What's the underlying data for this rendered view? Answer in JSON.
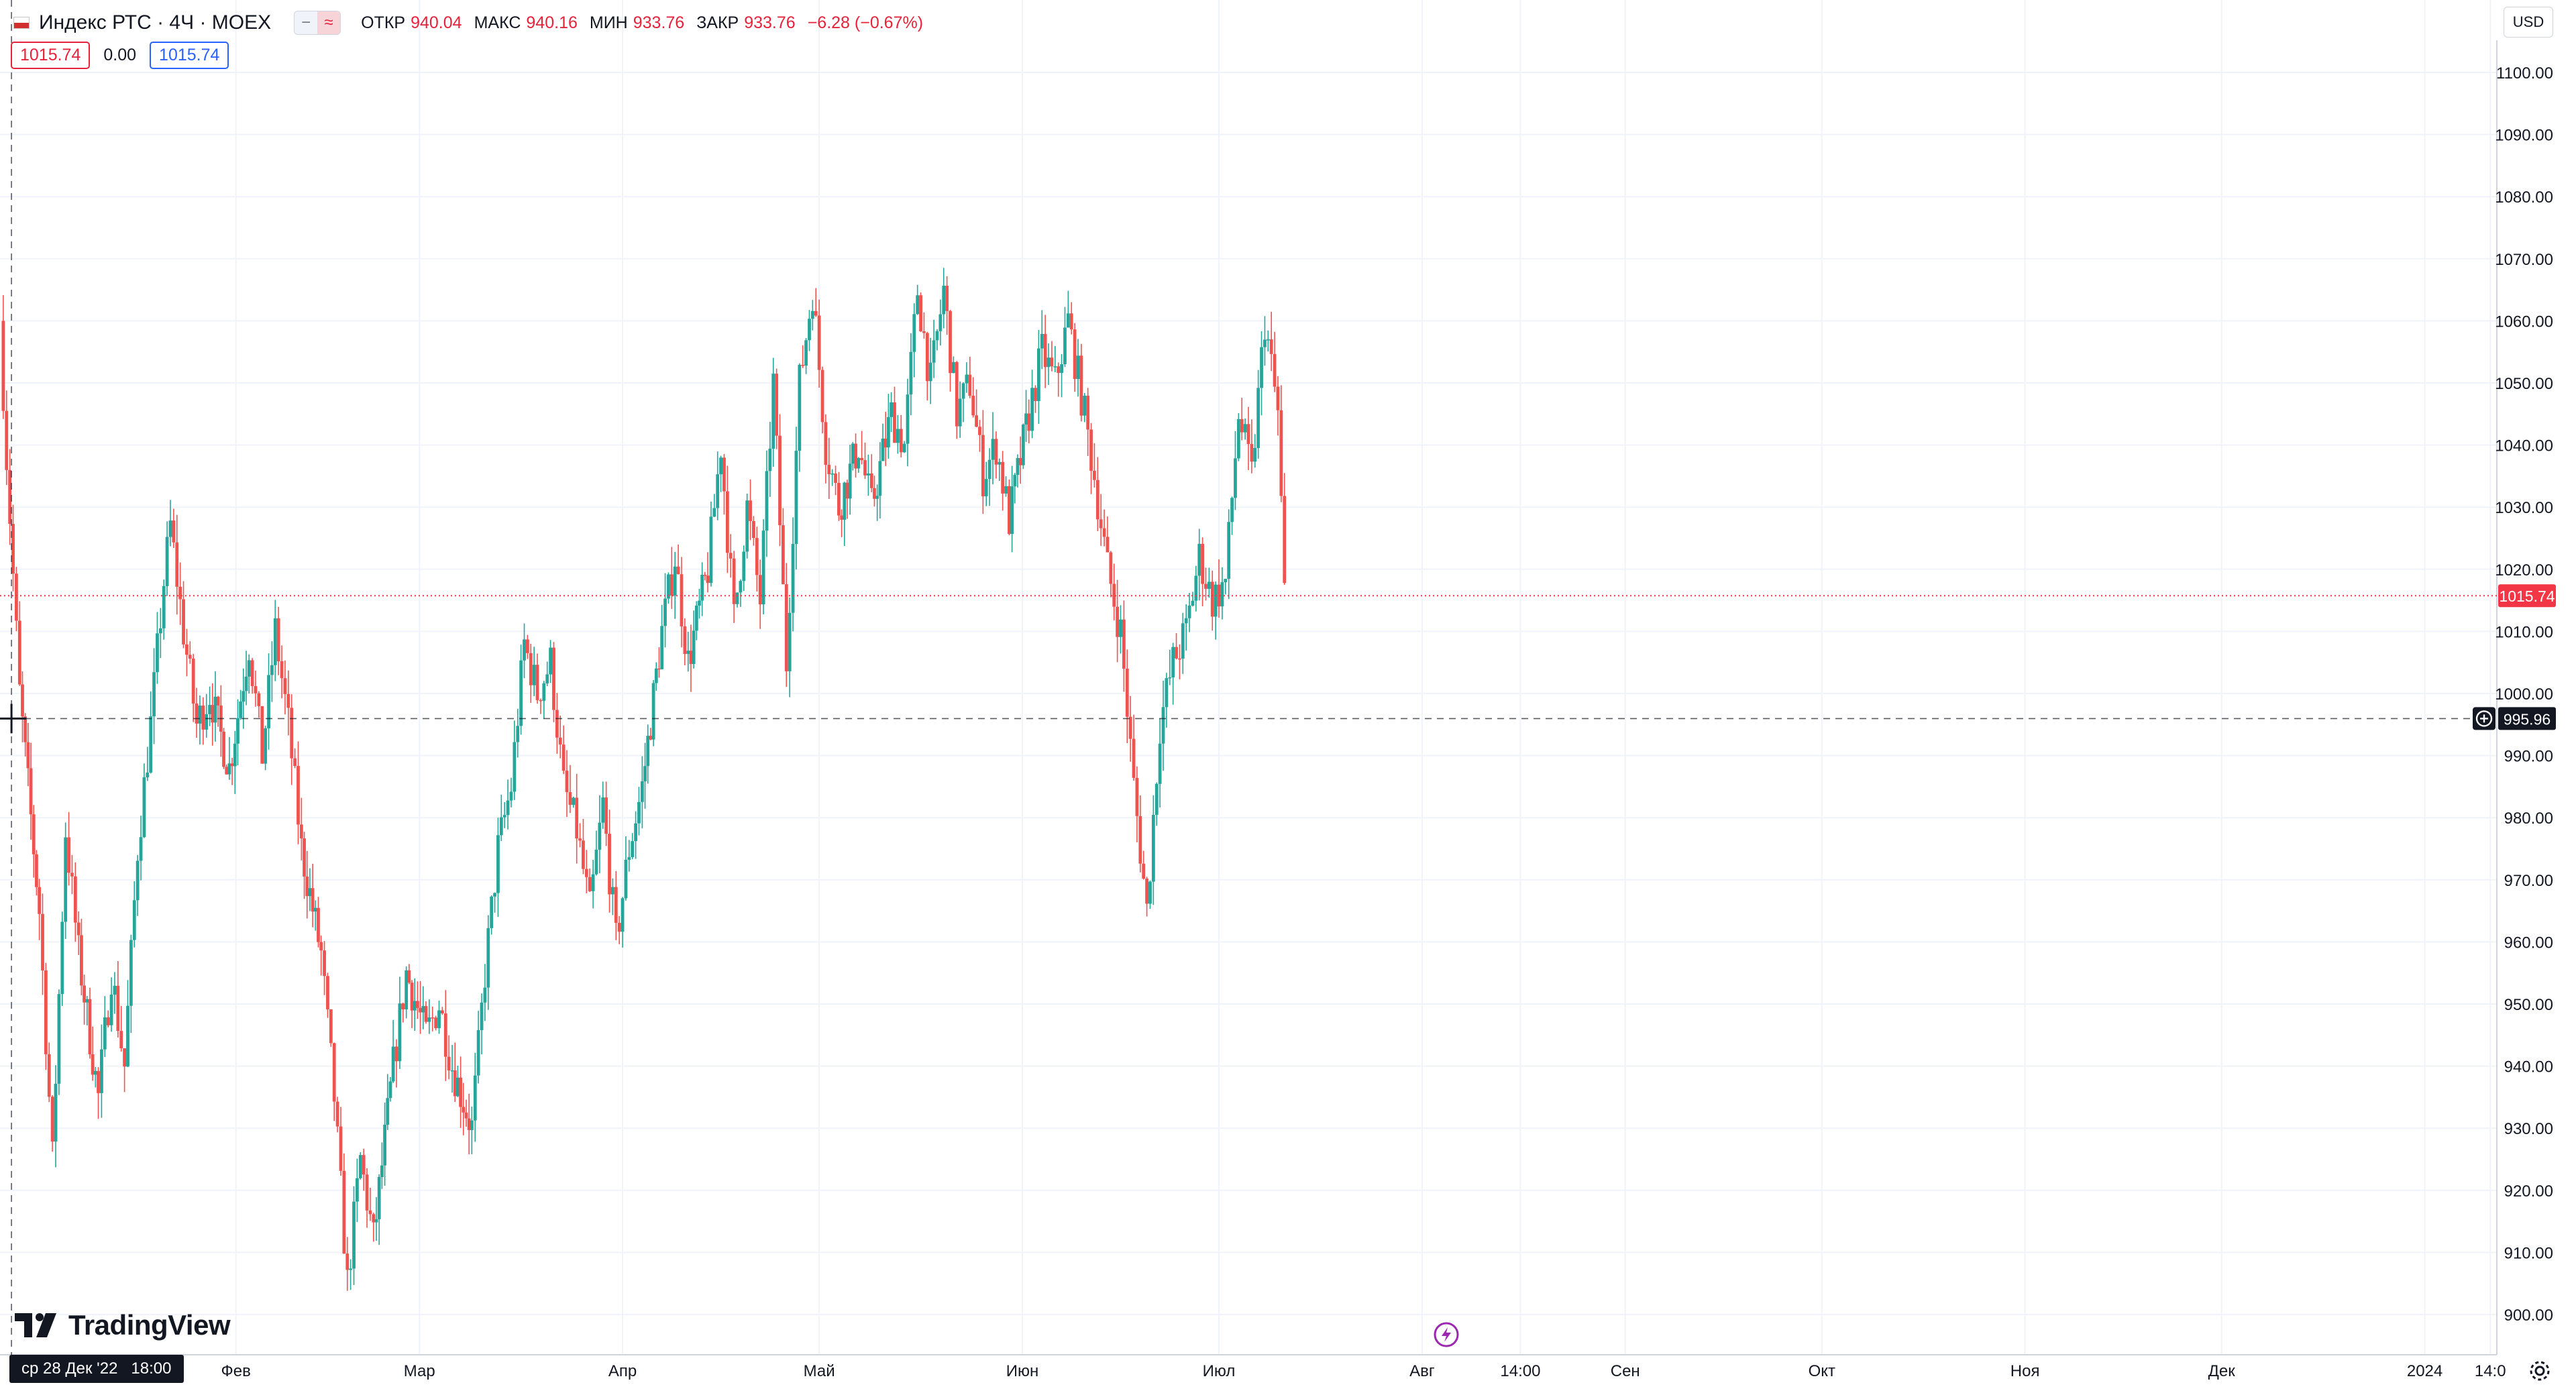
{
  "legend": {
    "symbol": "Индекс РТС · 4Ч · MOEX",
    "open_label": "ОТКР",
    "open": "940.04",
    "high_label": "МАКС",
    "high": "940.16",
    "low_label": "МИН",
    "low": "933.76",
    "close_label": "ЗАКР",
    "close": "933.76",
    "change": "−6.28 (−0.67%)"
  },
  "order_row": {
    "sell": "1015.74",
    "spread": "0.00",
    "buy": "1015.74"
  },
  "currency_button": "USD",
  "brand": "TradingView",
  "crosshair_date_label": "ср 28 Дек '22   18:00",
  "price_axis": {
    "ticks": [
      "1100.00",
      "1090.00",
      "1080.00",
      "1070.00",
      "1060.00",
      "1050.00",
      "1040.00",
      "1030.00",
      "1020.00",
      "1010.00",
      "1000.00",
      "990.00",
      "980.00",
      "970.00",
      "960.00",
      "950.00",
      "940.00",
      "930.00",
      "920.00",
      "910.00",
      "900.00"
    ],
    "last_price_label": "1015.74",
    "crosshair_price_label": "995.96"
  },
  "time_axis": {
    "ticks": [
      "Фев",
      "Мар",
      "Апр",
      "Май",
      "Июн",
      "Июл",
      "Авг",
      "14:00",
      "Сен",
      "Окт",
      "Ноя",
      "Дек",
      "2024",
      "14:0"
    ]
  },
  "colors": {
    "up": "#26a69a",
    "down": "#ef5350",
    "last_price": "#f23645",
    "crosshair": "#131722",
    "grid": "#f0f3fa"
  },
  "icons": [
    "flag-icon",
    "remove-icon",
    "compare-icon",
    "tradingview-logo-icon",
    "plus-circle-icon",
    "gear-icon",
    "lightning-icon"
  ],
  "chart_data": {
    "type": "candlestick",
    "title": "Индекс РТС · 4Ч · MOEX",
    "ylim": [
      897,
      1107
    ],
    "x_range": [
      "2022-12-27",
      "2024-01-12"
    ],
    "anchors": [
      [
        "2022-12-27",
        1060
      ],
      [
        "2022-12-28",
        1038
      ],
      [
        "2022-12-30",
        1000
      ],
      [
        "2023-01-02",
        965
      ],
      [
        "2023-01-04",
        925
      ],
      [
        "2023-01-06",
        978
      ],
      [
        "2023-01-08",
        958
      ],
      [
        "2023-01-11",
        935
      ],
      [
        "2023-01-13",
        955
      ],
      [
        "2023-01-15",
        940
      ],
      [
        "2023-01-17",
        975
      ],
      [
        "2023-01-19",
        995
      ],
      [
        "2023-01-21",
        1018
      ],
      [
        "2023-01-22",
        1027
      ],
      [
        "2023-01-24",
        1010
      ],
      [
        "2023-01-26",
        995
      ],
      [
        "2023-01-28",
        1000
      ],
      [
        "2023-01-31",
        988
      ],
      [
        "2023-02-03",
        1008
      ],
      [
        "2023-02-05",
        990
      ],
      [
        "2023-02-07",
        1010
      ],
      [
        "2023-02-09",
        995
      ],
      [
        "2023-02-11",
        975
      ],
      [
        "2023-02-14",
        958
      ],
      [
        "2023-02-16",
        935
      ],
      [
        "2023-02-18",
        905
      ],
      [
        "2023-02-20",
        925
      ],
      [
        "2023-02-22",
        912
      ],
      [
        "2023-02-25",
        940
      ],
      [
        "2023-02-27",
        955
      ],
      [
        "2023-03-02",
        945
      ],
      [
        "2023-03-04",
        950
      ],
      [
        "2023-03-06",
        940
      ],
      [
        "2023-03-09",
        930
      ],
      [
        "2023-03-11",
        955
      ],
      [
        "2023-03-13",
        975
      ],
      [
        "2023-03-15",
        985
      ],
      [
        "2023-03-17",
        1008
      ],
      [
        "2023-03-19",
        1000
      ],
      [
        "2023-03-21",
        1005
      ],
      [
        "2023-03-23",
        985
      ],
      [
        "2023-03-25",
        978
      ],
      [
        "2023-03-27",
        965
      ],
      [
        "2023-03-29",
        982
      ],
      [
        "2023-03-31",
        960
      ],
      [
        "2023-04-02",
        975
      ],
      [
        "2023-04-04",
        985
      ],
      [
        "2023-04-07",
        1010
      ],
      [
        "2023-04-09",
        1022
      ],
      [
        "2023-04-11",
        1005
      ],
      [
        "2023-04-14",
        1020
      ],
      [
        "2023-04-16",
        1040
      ],
      [
        "2023-04-18",
        1012
      ],
      [
        "2023-04-20",
        1030
      ],
      [
        "2023-04-22",
        1015
      ],
      [
        "2023-04-24",
        1050
      ],
      [
        "2023-04-26",
        1005
      ],
      [
        "2023-04-28",
        1050
      ],
      [
        "2023-04-30",
        1065
      ],
      [
        "2023-05-02",
        1040
      ],
      [
        "2023-05-04",
        1030
      ],
      [
        "2023-05-07",
        1040
      ],
      [
        "2023-05-09",
        1030
      ],
      [
        "2023-05-12",
        1045
      ],
      [
        "2023-05-14",
        1040
      ],
      [
        "2023-05-16",
        1065
      ],
      [
        "2023-05-18",
        1050
      ],
      [
        "2023-05-20",
        1065
      ],
      [
        "2023-05-22",
        1045
      ],
      [
        "2023-05-24",
        1050
      ],
      [
        "2023-05-26",
        1035
      ],
      [
        "2023-05-28",
        1040
      ],
      [
        "2023-05-30",
        1028
      ],
      [
        "2023-06-02",
        1045
      ],
      [
        "2023-06-04",
        1055
      ],
      [
        "2023-06-06",
        1050
      ],
      [
        "2023-06-08",
        1060
      ],
      [
        "2023-06-10",
        1048
      ],
      [
        "2023-06-12",
        1035
      ],
      [
        "2023-06-14",
        1020
      ],
      [
        "2023-06-16",
        1010
      ],
      [
        "2023-06-18",
        985
      ],
      [
        "2023-06-20",
        965
      ],
      [
        "2023-06-22",
        995
      ],
      [
        "2023-06-24",
        1005
      ],
      [
        "2023-06-26",
        1010
      ],
      [
        "2023-06-28",
        1022
      ],
      [
        "2023-06-30",
        1015
      ],
      [
        "2023-07-02",
        1018
      ],
      [
        "2023-07-04",
        1045
      ],
      [
        "2023-07-06",
        1035
      ],
      [
        "2023-07-08",
        1060
      ],
      [
        "2023-07-10",
        1045
      ],
      [
        "2023-07-11",
        1016
      ]
    ]
  }
}
